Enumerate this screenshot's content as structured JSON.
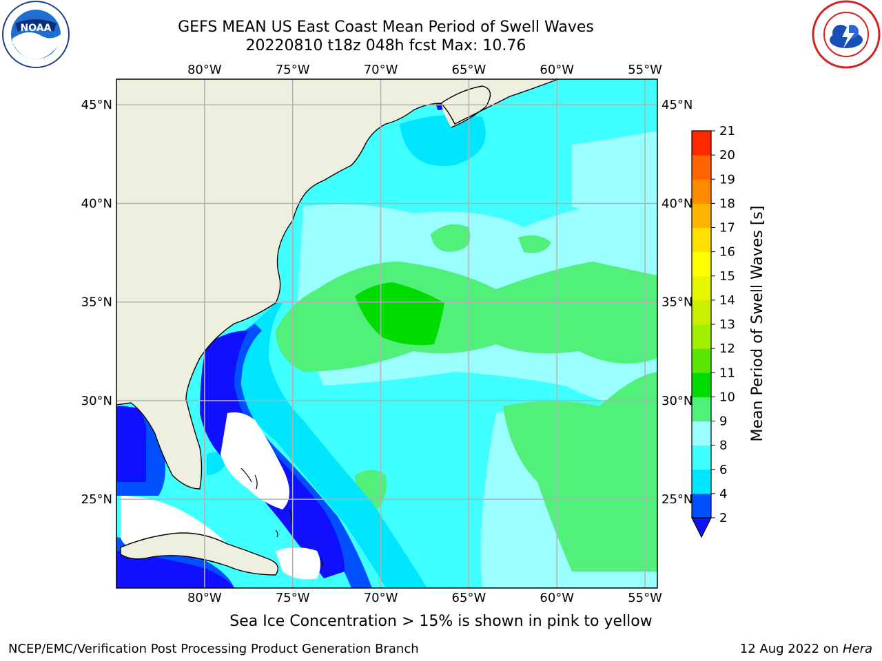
{
  "header": {
    "title_line1": "GEFS MEAN US East Coast Mean Period of Swell Waves",
    "title_line2": "20220810 t18z 048h fcst   Max: 10.76"
  },
  "logos": {
    "left": "noaa-logo",
    "right": "national-weather-service-logo"
  },
  "map": {
    "lon_ticks": [
      "80°W",
      "75°W",
      "70°W",
      "65°W",
      "60°W",
      "55°W"
    ],
    "lat_ticks": [
      "45°N",
      "40°N",
      "35°N",
      "30°N",
      "25°N"
    ],
    "extent": {
      "lon_min": -85,
      "lon_max": -54.3,
      "lat_min": 20.5,
      "lat_max": 46.3
    },
    "colors": {
      "land": "#efefdf",
      "no_swell": "#ffffff",
      "coastline": "#000000",
      "gridline": "#b0b0b0"
    }
  },
  "colorbar": {
    "label": "Mean Period of Swell Waves [s]",
    "levels": [
      "2",
      "4",
      "6",
      "8",
      "9",
      "10",
      "11",
      "12",
      "13",
      "14",
      "15",
      "16",
      "17",
      "18",
      "19",
      "20",
      "21"
    ],
    "colors": [
      "#0050ff",
      "#00e6ff",
      "#40ffff",
      "#9cffff",
      "#50f07a",
      "#00dc00",
      "#5ae600",
      "#a0f000",
      "#c8f000",
      "#e6f500",
      "#ffff00",
      "#ffe000",
      "#ffb400",
      "#ff8c00",
      "#ff6400",
      "#ff2800"
    ],
    "extend_low_color": "#1010ff"
  },
  "footer": {
    "note": "Sea Ice Concentration > 15% is shown in pink to yellow",
    "producer": "NCEP/EMC/Verification Post Processing Product Generation Branch",
    "date": "12 Aug 2022 on",
    "machine": "Hera"
  }
}
